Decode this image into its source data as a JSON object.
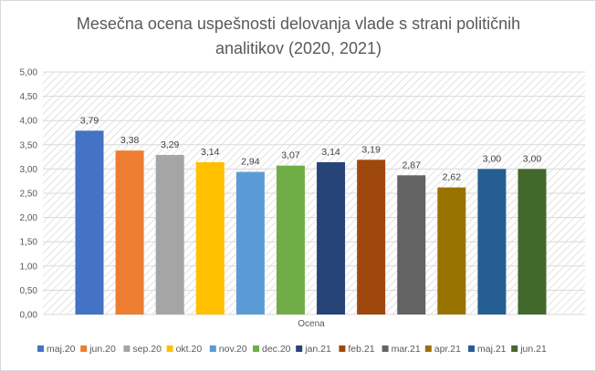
{
  "chart_data": {
    "type": "bar",
    "title_lines": [
      "Mesečna ocena uspešnosti delovanja vlade s strani političnih",
      "analitikov (2020, 2021)"
    ],
    "xlabel": "Ocena",
    "ylabel": "",
    "ylim": [
      0,
      5
    ],
    "y_ticks": [
      "0,00",
      "0,50",
      "1,00",
      "1,50",
      "2,00",
      "2,50",
      "3,00",
      "3,50",
      "4,00",
      "4,50",
      "5,00"
    ],
    "y_tick_values": [
      0,
      0.5,
      1,
      1.5,
      2,
      2.5,
      3,
      3.5,
      4,
      4.5,
      5
    ],
    "grid": true,
    "legend_position": "bottom",
    "series": [
      {
        "name": "maj.20",
        "value": 3.79,
        "label": "3,79",
        "color": "#4472c4"
      },
      {
        "name": "jun.20",
        "value": 3.38,
        "label": "3,38",
        "color": "#ed7d31"
      },
      {
        "name": "sep.20",
        "value": 3.29,
        "label": "3,29",
        "color": "#a5a5a5"
      },
      {
        "name": "okt.20",
        "value": 3.14,
        "label": "3,14",
        "color": "#ffc000"
      },
      {
        "name": "nov.20",
        "value": 2.94,
        "label": "2,94",
        "color": "#5b9bd5"
      },
      {
        "name": "dec.20",
        "value": 3.07,
        "label": "3,07",
        "color": "#70ad47"
      },
      {
        "name": "jan.21",
        "value": 3.14,
        "label": "3,14",
        "color": "#264478"
      },
      {
        "name": "feb.21",
        "value": 3.19,
        "label": "3,19",
        "color": "#9e480e"
      },
      {
        "name": "mar.21",
        "value": 2.87,
        "label": "2,87",
        "color": "#636363"
      },
      {
        "name": "apr.21",
        "value": 2.62,
        "label": "2,62",
        "color": "#997300"
      },
      {
        "name": "maj.21",
        "value": 3.0,
        "label": "3,00",
        "color": "#255e91"
      },
      {
        "name": "jun.21",
        "value": 3.0,
        "label": "3,00",
        "color": "#43682b"
      }
    ]
  }
}
